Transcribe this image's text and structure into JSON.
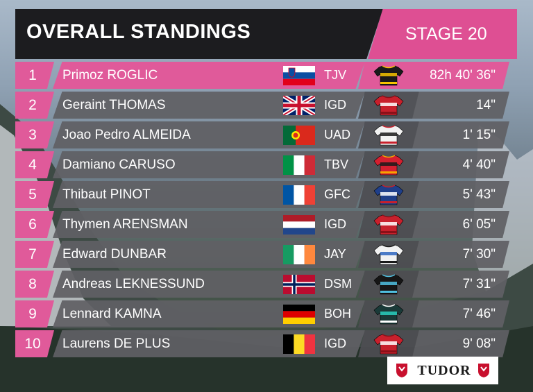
{
  "header": {
    "title": "OVERALL STANDINGS",
    "stage": "STAGE 20"
  },
  "colors": {
    "accent": "#e05a9a",
    "header_dark": "#1c1c1f",
    "row_grey": "#606064"
  },
  "standings": [
    {
      "pos": "1",
      "name": "Primoz ROGLIC",
      "team": "TJV",
      "time": "82h 40' 36\"",
      "flag": "slovenia"
    },
    {
      "pos": "2",
      "name": "Geraint THOMAS",
      "team": "IGD",
      "time": "14\"",
      "flag": "united-kingdom"
    },
    {
      "pos": "3",
      "name": "Joao Pedro ALMEIDA",
      "team": "UAD",
      "time": "1' 15\"",
      "flag": "portugal"
    },
    {
      "pos": "4",
      "name": "Damiano CARUSO",
      "team": "TBV",
      "time": "4' 40\"",
      "flag": "italy"
    },
    {
      "pos": "5",
      "name": "Thibaut PINOT",
      "team": "GFC",
      "time": "5' 43\"",
      "flag": "france"
    },
    {
      "pos": "6",
      "name": "Thymen ARENSMAN",
      "team": "IGD",
      "time": "6' 05\"",
      "flag": "netherlands"
    },
    {
      "pos": "7",
      "name": "Edward DUNBAR",
      "team": "JAY",
      "time": "7' 30\"",
      "flag": "ireland"
    },
    {
      "pos": "8",
      "name": "Andreas LEKNESSUND",
      "team": "DSM",
      "time": "7' 31\"",
      "flag": "norway"
    },
    {
      "pos": "9",
      "name": "Lennard KAMNA",
      "team": "BOH",
      "time": "7' 46\"",
      "flag": "germany"
    },
    {
      "pos": "10",
      "name": "Laurens DE PLUS",
      "team": "IGD",
      "time": "9' 08\"",
      "flag": "belgium"
    }
  ],
  "sponsor": {
    "name": "TUDOR"
  }
}
